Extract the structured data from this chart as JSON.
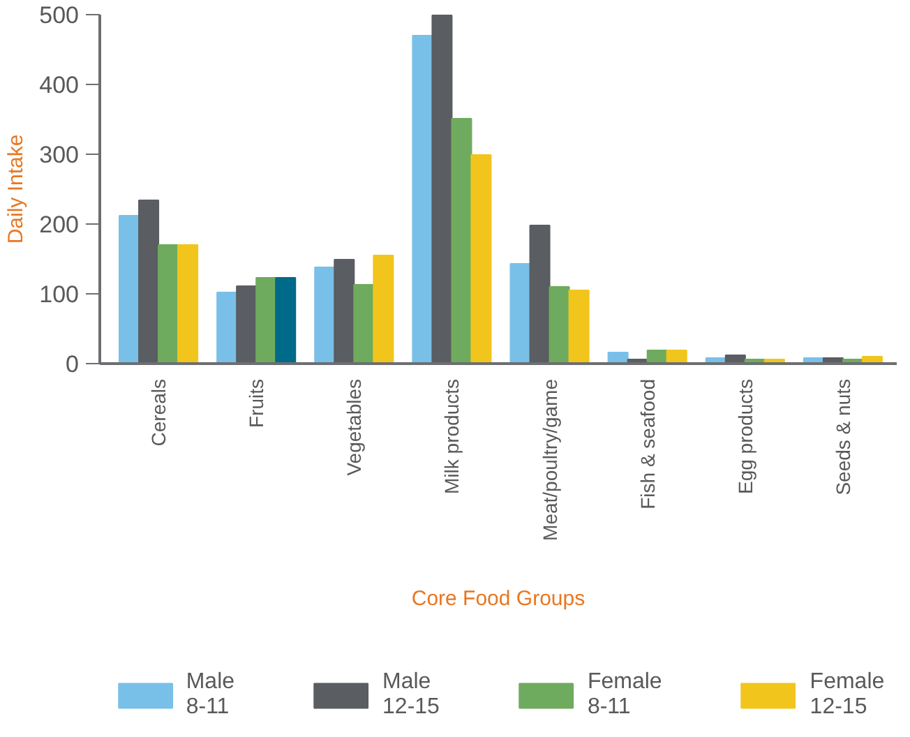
{
  "chart_data": {
    "type": "bar",
    "xlabel": "Core Food Groups",
    "ylabel": "Daily Intake",
    "categories": [
      "Cereals",
      "Fruits",
      "Vegetables",
      "Milk products",
      "Meat/poultry/game",
      "Fish & seafood",
      "Egg products",
      "Seeds & nuts"
    ],
    "series": [
      {
        "name": "Male\n8-11",
        "color": "#79c0e8",
        "values": [
          212,
          102,
          138,
          470,
          143,
          16,
          8,
          8
        ]
      },
      {
        "name": "Male\n12-15",
        "color": "#5a5d62",
        "values": [
          234,
          111,
          149,
          499,
          198,
          6,
          12,
          8
        ]
      },
      {
        "name": "Female\n8-11",
        "color": "#6fab5e",
        "values": [
          170,
          123,
          113,
          351,
          110,
          19,
          6,
          6
        ]
      },
      {
        "name": "Female\n12-15",
        "color": "#f2c51c",
        "colors": [
          "#f2c51c",
          "#006a8a",
          "#f2c51c",
          "#f2c51c",
          "#f2c51c",
          "#f2c51c",
          "#f2c51c",
          "#f2c51c"
        ],
        "values": [
          170,
          123,
          155,
          299,
          105,
          19,
          6,
          10
        ]
      }
    ],
    "ylim": [
      0,
      500
    ],
    "yticks": [
      0,
      100,
      200,
      300,
      400,
      500
    ],
    "grid": false,
    "legend": "bottom"
  }
}
